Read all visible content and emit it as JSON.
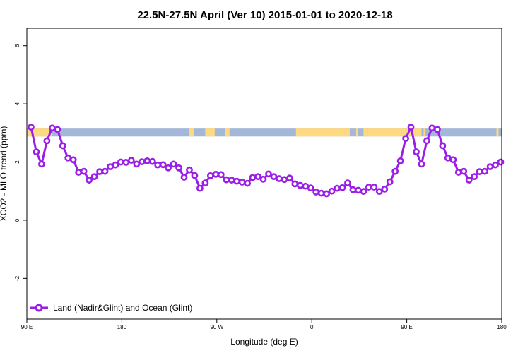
{
  "chart_data": {
    "type": "line",
    "title": "22.5N-27.5N April (Ver 10)   2015-01-01 to 2020-12-18",
    "xlabel": "Longitude (deg E)",
    "ylabel": "XCO2 - MLO trend (ppm)",
    "xlim": [
      90,
      540
    ],
    "ylim": [
      -3.4,
      6.6
    ],
    "x_ticks": [
      {
        "value": 90,
        "label": "90 E"
      },
      {
        "value": 180,
        "label": "180"
      },
      {
        "value": 270,
        "label": "90 W"
      },
      {
        "value": 360,
        "label": "0"
      },
      {
        "value": 450,
        "label": "90 E"
      },
      {
        "value": 540,
        "label": "180"
      }
    ],
    "y_ticks": [
      {
        "value": -2,
        "label": "-2"
      },
      {
        "value": 0,
        "label": "0"
      },
      {
        "value": 2,
        "label": "2"
      },
      {
        "value": 4,
        "label": "4"
      },
      {
        "value": 6,
        "label": "6"
      }
    ],
    "grid": false,
    "legend_position": "bottom-left",
    "map_strip": {
      "y_range": [
        2.88,
        3.15
      ],
      "ocean_color": "#a3b8d8",
      "land_color": "#ffd980",
      "land_x_ranges": [
        [
          90,
          114
        ],
        [
          244,
          248
        ],
        [
          259,
          268
        ],
        [
          278,
          282
        ],
        [
          345,
          396
        ],
        [
          402,
          404
        ],
        [
          409,
          413
        ],
        [
          413,
          450
        ],
        [
          450,
          464
        ],
        [
          466,
          467
        ],
        [
          535,
          537
        ]
      ]
    },
    "series": [
      {
        "name": "Land (Nadir&Glint) and Ocean (Glint)",
        "color": "#9a1ee8",
        "x": [
          94,
          99,
          104,
          109,
          114,
          119,
          124,
          129,
          134,
          139,
          144,
          149,
          154,
          159,
          164,
          169,
          174,
          179,
          184,
          189,
          194,
          199,
          204,
          209,
          214,
          219,
          224,
          229,
          234,
          239,
          244,
          249,
          254,
          259,
          264,
          269,
          274,
          279,
          284,
          289,
          294,
          299,
          304,
          309,
          314,
          319,
          324,
          329,
          334,
          339,
          344,
          349,
          354,
          359,
          364,
          369,
          374,
          379,
          384,
          389,
          394,
          399,
          404,
          409,
          414,
          419,
          424,
          429,
          434,
          439,
          444,
          449,
          454,
          459,
          464,
          469,
          474,
          479,
          484,
          489,
          494,
          499,
          504,
          509,
          514,
          519,
          524,
          529,
          534,
          539
        ],
        "y": [
          3.2,
          2.35,
          1.93,
          2.73,
          3.17,
          3.12,
          2.56,
          2.14,
          2.08,
          1.65,
          1.68,
          1.38,
          1.5,
          1.67,
          1.68,
          1.84,
          1.9,
          2.0,
          1.99,
          2.06,
          1.93,
          2.01,
          2.04,
          2.02,
          1.9,
          1.91,
          1.8,
          1.93,
          1.8,
          1.48,
          1.73,
          1.54,
          1.1,
          1.28,
          1.53,
          1.58,
          1.57,
          1.39,
          1.38,
          1.34,
          1.31,
          1.27,
          1.47,
          1.5,
          1.41,
          1.59,
          1.5,
          1.43,
          1.4,
          1.45,
          1.25,
          1.2,
          1.17,
          1.11,
          0.97,
          0.93,
          0.91,
          1.0,
          1.1,
          1.12,
          1.28,
          1.05,
          1.03,
          0.99,
          1.14,
          1.14,
          0.99,
          1.07,
          1.32,
          1.68,
          2.04,
          2.81,
          3.2,
          2.35,
          1.93,
          2.73,
          3.17,
          3.12,
          2.56,
          2.14,
          2.08,
          1.65,
          1.68,
          1.38,
          1.5,
          1.67,
          1.68,
          1.84,
          1.9,
          2.0
        ]
      }
    ]
  }
}
